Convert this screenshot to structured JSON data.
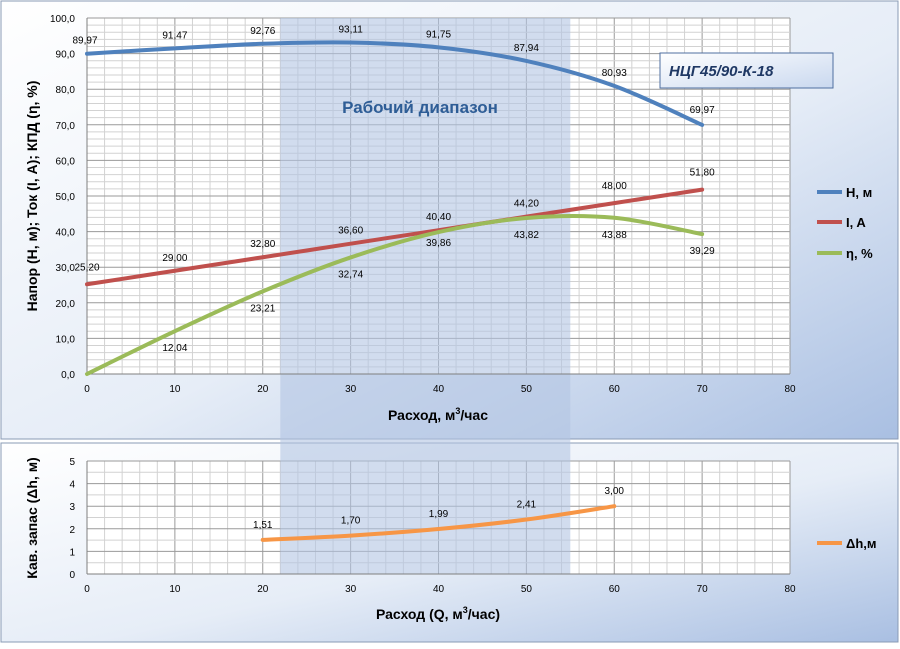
{
  "chart_data": [
    {
      "type": "line",
      "title": "",
      "model_label": "НЦГ45/90-К-18",
      "range_label": "Рабочий диапазон",
      "working_range_x": [
        22,
        55
      ],
      "xlabel_main": "Расход, м",
      "xlabel_sup": "3",
      "xlabel_tail": "/час",
      "ylabel": "Напор (Н, м); Ток (I, А); КПД (η, %)",
      "xlim": [
        0,
        80
      ],
      "ylim": [
        0,
        100
      ],
      "x_ticks": [
        "0",
        "10",
        "20",
        "30",
        "40",
        "50",
        "60",
        "70",
        "80"
      ],
      "y_ticks": [
        "0,0",
        "10,0",
        "20,0",
        "30,0",
        "40,0",
        "50,0",
        "60,0",
        "70,0",
        "80,0",
        "90,0",
        "100,0"
      ],
      "grid": true,
      "legend_position": "right",
      "series": [
        {
          "name": "Н, м",
          "color": "#4f81bd",
          "points": [
            [
              0,
              89.97
            ],
            [
              10,
              91.47
            ],
            [
              20,
              92.76
            ],
            [
              30,
              93.11
            ],
            [
              40,
              91.75
            ],
            [
              50,
              87.94
            ],
            [
              60,
              80.93
            ],
            [
              70,
              69.97
            ]
          ],
          "labels": [
            "89,97",
            "91,47",
            "92,76",
            "93,11",
            "91,75",
            "87,94",
            "80,93",
            "69,97"
          ]
        },
        {
          "name": "I, A",
          "color": "#c0504d",
          "points": [
            [
              0,
              25.2
            ],
            [
              10,
              29.0
            ],
            [
              20,
              32.8
            ],
            [
              30,
              36.6
            ],
            [
              40,
              40.4
            ],
            [
              50,
              44.2
            ],
            [
              60,
              48.0
            ],
            [
              70,
              51.8
            ]
          ],
          "labels": [
            "25,20",
            "29,00",
            "32,80",
            "36,60",
            "40,40",
            "44,20",
            "48,00",
            "51,80"
          ]
        },
        {
          "name": "η, %",
          "color": "#9bbb59",
          "points": [
            [
              0,
              0
            ],
            [
              10,
              12.04
            ],
            [
              20,
              23.21
            ],
            [
              30,
              32.74
            ],
            [
              40,
              39.86
            ],
            [
              50,
              43.82
            ],
            [
              60,
              43.88
            ],
            [
              70,
              39.29
            ]
          ],
          "labels": [
            "",
            "12,04",
            "23,21",
            "32,74",
            "39,86",
            "43,82",
            "43,88",
            "39,29"
          ]
        }
      ]
    },
    {
      "type": "line",
      "title": "",
      "xlabel_main": "Расход (Q, м",
      "xlabel_sup": "3",
      "xlabel_tail": "/час)",
      "ylabel": "Кав. запас (Δh, м)",
      "xlim": [
        0,
        80
      ],
      "ylim": [
        0,
        5
      ],
      "x_ticks": [
        "0",
        "10",
        "20",
        "30",
        "40",
        "50",
        "60",
        "70",
        "80"
      ],
      "y_ticks": [
        "0",
        "1",
        "2",
        "3",
        "4",
        "5"
      ],
      "grid": true,
      "legend_position": "right",
      "series": [
        {
          "name": "Δh,м",
          "color": "#f79646",
          "points": [
            [
              20,
              1.51
            ],
            [
              30,
              1.7
            ],
            [
              40,
              1.99
            ],
            [
              50,
              2.41
            ],
            [
              60,
              3.0
            ]
          ],
          "labels": [
            "1,51",
            "1,70",
            "1,99",
            "2,41",
            "3,00"
          ]
        }
      ]
    }
  ]
}
